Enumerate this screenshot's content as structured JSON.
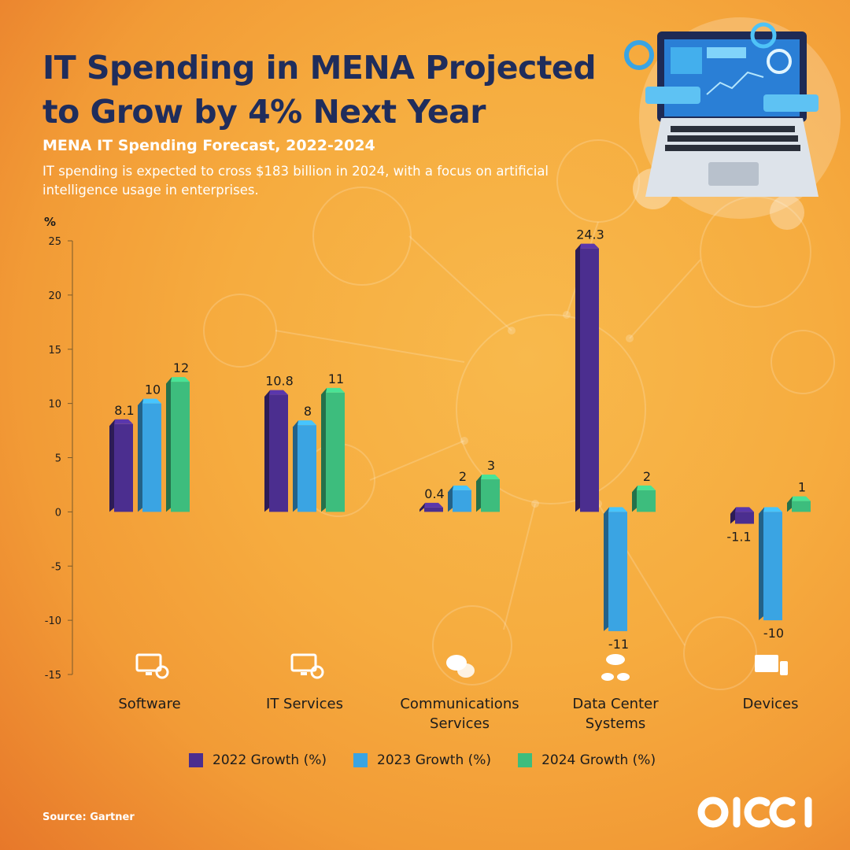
{
  "header": {
    "title": "IT Spending in MENA Projected to Grow by 4% Next Year",
    "subtitle": "MENA IT Spending Forecast, 2022-2024",
    "description": "IT spending is expected to cross $183 billion in 2024, with a focus on artificial intelligence usage in enterprises."
  },
  "chart_data": {
    "type": "bar",
    "ylabel": "%",
    "ylim": [
      -15,
      25
    ],
    "yticks": [
      25,
      20,
      15,
      10,
      5,
      0,
      -5,
      -10,
      -15
    ],
    "grid": false,
    "legend_position": "bottom",
    "categories": [
      "Software",
      "IT Services",
      "Communications Services",
      "Data Center Systems",
      "Devices"
    ],
    "category_labels": [
      [
        "Software"
      ],
      [
        "IT Services"
      ],
      [
        "Communications",
        "Services"
      ],
      [
        "Data Center",
        "Systems"
      ],
      [
        "Devices"
      ]
    ],
    "category_icons": [
      "code-monitor-icon",
      "gear-monitor-icon",
      "chat-bubbles-icon",
      "cloud-database-icon",
      "devices-icon"
    ],
    "series": [
      {
        "name": "2022 Growth (%)",
        "color": "#4b2e8f",
        "values": [
          8.1,
          10.8,
          0.4,
          24.3,
          -1.1
        ],
        "labels": [
          "8.1",
          "10.8",
          "0.4",
          "24.3",
          "-1.1"
        ]
      },
      {
        "name": "2023 Growth (%)",
        "color": "#3aa4e3",
        "values": [
          10,
          8,
          2,
          -11,
          -10
        ],
        "labels": [
          "10",
          "8",
          "2",
          "-11",
          "-10"
        ]
      },
      {
        "name": "2024 Growth (%)",
        "color": "#3dbd7d",
        "values": [
          12,
          11,
          3,
          2,
          1
        ],
        "labels": [
          "12",
          "11",
          "3",
          "2",
          "1"
        ]
      }
    ]
  },
  "footer": {
    "source": "Source: Gartner",
    "logo_text": "OICCI"
  }
}
